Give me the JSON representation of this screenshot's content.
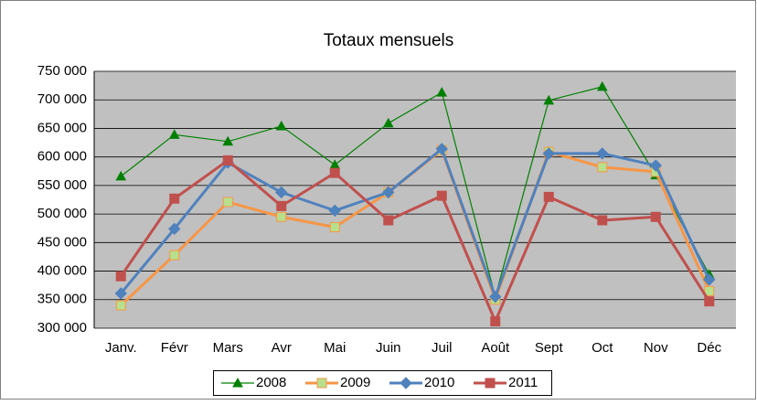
{
  "chart_data": {
    "type": "line",
    "title": "Totaux mensuels",
    "categories": [
      "Janv.",
      "Févr",
      "Mars",
      "Avr",
      "Mai",
      "Juin",
      "Juil",
      "Août",
      "Sept",
      "Oct",
      "Nov",
      "Déc"
    ],
    "series": [
      {
        "name": "2008",
        "color": "#008000",
        "marker": "triangle",
        "width": 1.2,
        "values": [
          566000,
          639000,
          627000,
          654000,
          586000,
          659000,
          713000,
          355000,
          699000,
          723000,
          568000,
          394000
        ]
      },
      {
        "name": "2009",
        "color": "#f79646",
        "marker": "square",
        "width": 3,
        "values": [
          340000,
          428000,
          521000,
          495000,
          477000,
          538000,
          612000,
          350000,
          609000,
          582000,
          574000,
          365000
        ]
      },
      {
        "name": "2010",
        "color": "#4f81bd",
        "marker": "diamond",
        "width": 3,
        "values": [
          361000,
          474000,
          590000,
          538000,
          506000,
          538000,
          614000,
          355000,
          606000,
          606000,
          585000,
          385000
        ]
      },
      {
        "name": "2011",
        "color": "#c0504d",
        "marker": "square",
        "width": 3,
        "values": [
          391000,
          527000,
          594000,
          514000,
          572000,
          489000,
          532000,
          312000,
          530000,
          489000,
          495000,
          347000
        ]
      }
    ],
    "ylim": [
      300000,
      750000
    ],
    "yticks": [
      {
        "value": 300000,
        "label": "300 000"
      },
      {
        "value": 350000,
        "label": "350 000"
      },
      {
        "value": 400000,
        "label": "400 000"
      },
      {
        "value": 450000,
        "label": "450 000"
      },
      {
        "value": 500000,
        "label": "500 000"
      },
      {
        "value": 550000,
        "label": "550 000"
      },
      {
        "value": 600000,
        "label": "600 000"
      },
      {
        "value": 650000,
        "label": "650 000"
      },
      {
        "value": 700000,
        "label": "700 000"
      },
      {
        "value": 750000,
        "label": "750 000"
      }
    ],
    "grid": true,
    "legend": "bottom"
  }
}
